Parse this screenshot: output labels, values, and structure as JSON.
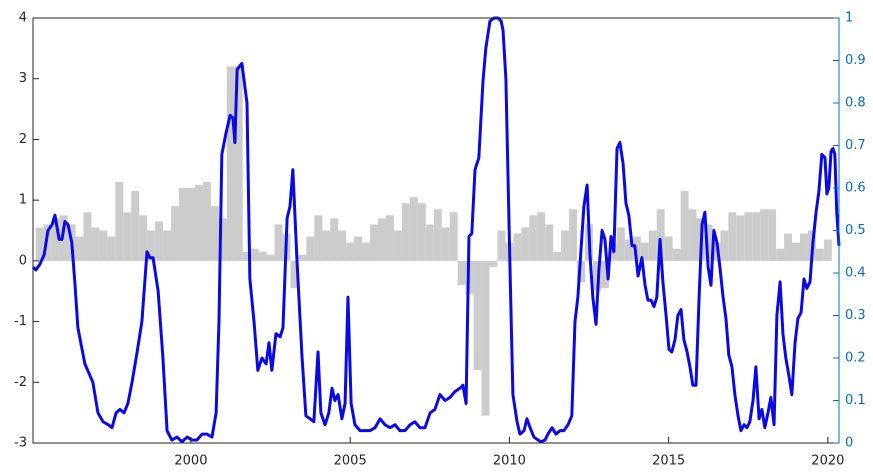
{
  "chart_data": {
    "type": "combo",
    "xlim": [
      1995.04,
      2020.35
    ],
    "xticks": [
      2000,
      2005,
      2010,
      2015,
      2020
    ],
    "ylim": [
      -3,
      4
    ],
    "yticks": [
      -3,
      -2,
      -1,
      0,
      1,
      2,
      3,
      4
    ],
    "y2lim": [
      0,
      1
    ],
    "y2ticks": [
      0,
      0.1,
      0.2,
      0.3,
      0.4,
      0.5,
      0.6,
      0.7,
      0.8,
      0.9,
      1
    ],
    "y2_color": "#0072bd",
    "series": [
      {
        "type": "bar",
        "color": "#cccccc",
        "x": [
          1995.25,
          1995.5,
          1995.75,
          1996,
          1996.25,
          1996.5,
          1996.75,
          1997,
          1997.25,
          1997.5,
          1997.75,
          1998,
          1998.25,
          1998.5,
          1998.75,
          1999,
          1999.25,
          1999.5,
          1999.75,
          2000,
          2000.25,
          2000.5,
          2000.75,
          2001,
          2001.25,
          2001.5,
          2001.75,
          2002,
          2002.25,
          2002.5,
          2002.75,
          2003,
          2003.25,
          2003.5,
          2003.75,
          2004,
          2004.25,
          2004.5,
          2004.75,
          2005,
          2005.25,
          2005.5,
          2005.75,
          2006,
          2006.25,
          2006.5,
          2006.75,
          2007,
          2007.25,
          2007.5,
          2007.75,
          2008,
          2008.25,
          2008.5,
          2008.75,
          2009,
          2009.25,
          2009.5,
          2009.75,
          2010,
          2010.25,
          2010.5,
          2010.75,
          2011,
          2011.25,
          2011.5,
          2011.75,
          2012,
          2012.25,
          2012.5,
          2012.75,
          2013,
          2013.25,
          2013.5,
          2013.75,
          2014,
          2014.25,
          2014.5,
          2014.75,
          2015,
          2015.25,
          2015.5,
          2015.75,
          2016,
          2016.25,
          2016.5,
          2016.75,
          2017,
          2017.25,
          2017.5,
          2017.75,
          2018,
          2018.25,
          2018.5,
          2018.75,
          2019,
          2019.25,
          2019.5,
          2019.75,
          2020
        ],
        "values": [
          0.55,
          0.6,
          0.7,
          0.75,
          0.6,
          0.4,
          0.8,
          0.55,
          0.5,
          0.4,
          1.3,
          0.8,
          1.15,
          0.75,
          0.5,
          0.65,
          0.5,
          0.9,
          1.2,
          1.2,
          1.25,
          1.3,
          0.9,
          0.7,
          3.2,
          3.2,
          0.15,
          0.2,
          0.15,
          0.1,
          0.6,
          0.45,
          -0.45,
          0.1,
          0.4,
          0.75,
          0.5,
          0.7,
          0.5,
          0.3,
          0.4,
          0.3,
          0.6,
          0.7,
          0.75,
          0.5,
          0.95,
          1.05,
          0.95,
          0.6,
          0.85,
          0.55,
          0.8,
          -0.4,
          -0.55,
          -1.8,
          -2.55,
          -0.1,
          0.5,
          0.3,
          0.45,
          0.55,
          0.75,
          0.8,
          0.6,
          0.15,
          0.5,
          0.85,
          -0.35,
          0.6,
          -0.5,
          -0.45,
          0.3,
          0.55,
          0.35,
          0.4,
          0.3,
          0.5,
          0.85,
          0.4,
          0.2,
          1.15,
          0.85,
          0.7,
          0.6,
          0.3,
          0.5,
          0.8,
          0.75,
          0.8,
          0.8,
          0.85,
          0.85,
          0.2,
          0.45,
          0.3,
          0.45,
          0.5,
          0.2,
          0.35
        ]
      },
      {
        "type": "line",
        "color": "#0a0ae6",
        "axis": "y2",
        "x": [
          1995.04,
          1995.13,
          1995.26,
          1995.39,
          1995.51,
          1995.64,
          1995.73,
          1995.86,
          1995.95,
          1996.04,
          1996.14,
          1996.26,
          1996.36,
          1996.45,
          1996.67,
          1996.92,
          1997.08,
          1997.24,
          1997.4,
          1997.52,
          1997.65,
          1997.77,
          1997.9,
          1998.02,
          1998.15,
          1998.31,
          1998.46,
          1998.62,
          1998.71,
          1998.81,
          1998.97,
          1999.12,
          1999.25,
          1999.4,
          1999.56,
          1999.72,
          1999.88,
          2000.03,
          2000.19,
          2000.35,
          2000.5,
          2000.66,
          2000.79,
          2000.88,
          2000.97,
          2001.1,
          2001.23,
          2001.32,
          2001.38,
          2001.45,
          2001.6,
          2001.76,
          2001.85,
          2001.98,
          2002.1,
          2002.23,
          2002.36,
          2002.45,
          2002.54,
          2002.67,
          2002.8,
          2002.89,
          2003.02,
          2003.11,
          2003.2,
          2003.33,
          2003.49,
          2003.61,
          2003.74,
          2003.86,
          2003.99,
          2004.08,
          2004.21,
          2004.33,
          2004.43,
          2004.52,
          2004.62,
          2004.74,
          2004.84,
          2004.93,
          2005.03,
          2005.15,
          2005.31,
          2005.46,
          2005.62,
          2005.78,
          2005.94,
          2006.09,
          2006.25,
          2006.41,
          2006.56,
          2006.72,
          2006.88,
          2007.03,
          2007.19,
          2007.35,
          2007.51,
          2007.66,
          2007.82,
          2007.98,
          2008.13,
          2008.29,
          2008.45,
          2008.54,
          2008.64,
          2008.73,
          2008.82,
          2008.92,
          2009.04,
          2009.17,
          2009.26,
          2009.39,
          2009.52,
          2009.64,
          2009.74,
          2009.8,
          2009.89,
          2010.02,
          2010.11,
          2010.24,
          2010.33,
          2010.46,
          2010.55,
          2010.65,
          2010.77,
          2010.9,
          2010.99,
          2011.12,
          2011.21,
          2011.34,
          2011.46,
          2011.59,
          2011.71,
          2011.84,
          2011.96,
          2012.06,
          2012.15,
          2012.25,
          2012.34,
          2012.44,
          2012.53,
          2012.62,
          2012.72,
          2012.81,
          2012.91,
          2013,
          2013.1,
          2013.19,
          2013.28,
          2013.38,
          2013.47,
          2013.57,
          2013.66,
          2013.75,
          2013.85,
          2013.94,
          2014.04,
          2014.16,
          2014.26,
          2014.35,
          2014.45,
          2014.54,
          2014.63,
          2014.73,
          2014.82,
          2014.92,
          2015.01,
          2015.1,
          2015.2,
          2015.29,
          2015.39,
          2015.48,
          2015.58,
          2015.67,
          2015.76,
          2015.86,
          2015.95,
          2016.05,
          2016.14,
          2016.24,
          2016.33,
          2016.42,
          2016.52,
          2016.61,
          2016.71,
          2016.8,
          2016.89,
          2016.99,
          2017.08,
          2017.18,
          2017.27,
          2017.37,
          2017.46,
          2017.55,
          2017.65,
          2017.74,
          2017.84,
          2017.93,
          2018.02,
          2018.12,
          2018.21,
          2018.31,
          2018.4,
          2018.5,
          2018.59,
          2018.68,
          2018.78,
          2018.87,
          2018.97,
          2019.06,
          2019.16,
          2019.25,
          2019.34,
          2019.44,
          2019.53,
          2019.63,
          2019.72,
          2019.81,
          2019.91,
          2019.97,
          2020.03,
          2020.1,
          2020.16,
          2020.22,
          2020.28,
          2020.35
        ],
        "values": [
          0.414,
          0.407,
          0.421,
          0.443,
          0.5,
          0.514,
          0.536,
          0.479,
          0.479,
          0.521,
          0.514,
          0.471,
          0.371,
          0.271,
          0.186,
          0.143,
          0.071,
          0.05,
          0.043,
          0.036,
          0.071,
          0.079,
          0.071,
          0.093,
          0.143,
          0.214,
          0.286,
          0.45,
          0.436,
          0.436,
          0.357,
          0.2,
          0.029,
          0.007,
          0.014,
          0.003,
          0.014,
          0.007,
          0.007,
          0.021,
          0.021,
          0.014,
          0.071,
          0.286,
          0.679,
          0.729,
          0.771,
          0.764,
          0.707,
          0.879,
          0.893,
          0.8,
          0.386,
          0.286,
          0.171,
          0.2,
          0.186,
          0.236,
          0.171,
          0.257,
          0.25,
          0.271,
          0.529,
          0.557,
          0.643,
          0.429,
          0.2,
          0.064,
          0.057,
          0.05,
          0.214,
          0.071,
          0.043,
          0.071,
          0.129,
          0.1,
          0.114,
          0.057,
          0.093,
          0.343,
          0.093,
          0.043,
          0.029,
          0.029,
          0.029,
          0.036,
          0.057,
          0.043,
          0.036,
          0.043,
          0.029,
          0.029,
          0.043,
          0.05,
          0.036,
          0.036,
          0.071,
          0.079,
          0.114,
          0.1,
          0.107,
          0.121,
          0.129,
          0.136,
          0.093,
          0.486,
          0.493,
          0.643,
          0.671,
          0.85,
          0.929,
          0.993,
          1,
          1,
          0.993,
          0.971,
          0.857,
          0.407,
          0.114,
          0.05,
          0.021,
          0.029,
          0.057,
          0.036,
          0.014,
          0.007,
          0.003,
          0.007,
          0.021,
          0.036,
          0.021,
          0.029,
          0.029,
          0.043,
          0.064,
          0.286,
          0.343,
          0.457,
          0.557,
          0.607,
          0.443,
          0.343,
          0.279,
          0.407,
          0.5,
          0.479,
          0.386,
          0.486,
          0.45,
          0.693,
          0.707,
          0.657,
          0.564,
          0.536,
          0.464,
          0.464,
          0.393,
          0.436,
          0.371,
          0.336,
          0.336,
          0.321,
          0.343,
          0.479,
          0.379,
          0.3,
          0.221,
          0.214,
          0.243,
          0.3,
          0.314,
          0.243,
          0.214,
          0.179,
          0.136,
          0.136,
          0.329,
          0.514,
          0.543,
          0.414,
          0.371,
          0.5,
          0.471,
          0.414,
          0.343,
          0.293,
          0.207,
          0.179,
          0.114,
          0.064,
          0.029,
          0.043,
          0.036,
          0.05,
          0.1,
          0.179,
          0.057,
          0.079,
          0.036,
          0.071,
          0.107,
          0.043,
          0.3,
          0.379,
          0.257,
          0.2,
          0.157,
          0.114,
          0.236,
          0.293,
          0.307,
          0.386,
          0.364,
          0.379,
          0.471,
          0.543,
          0.593,
          0.679,
          0.671,
          0.586,
          0.6,
          0.686,
          0.693,
          0.679,
          0.543,
          0.464
        ]
      }
    ]
  }
}
